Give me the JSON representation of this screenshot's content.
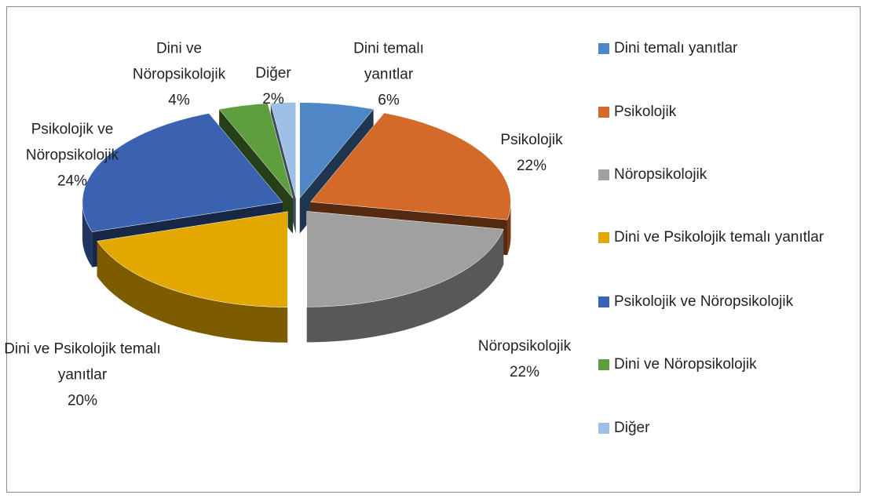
{
  "chart_data": {
    "type": "pie",
    "categories": [
      "Dini temalı yanıtlar",
      "Psikolojik",
      "Nöropsikolojik",
      "Dini ve Psikolojik temalı yanıtlar",
      "Psikolojik ve Nöropsikolojik",
      "Dini ve Nöropsikolojik",
      "Diğer"
    ],
    "values": [
      6,
      22,
      22,
      20,
      24,
      4,
      2
    ],
    "value_labels": [
      "6%",
      "22%",
      "22%",
      "20%",
      "24%",
      "4%",
      "2%"
    ],
    "colors": [
      "#4f86c6",
      "#d46a2a",
      "#a0a0a0",
      "#e3a800",
      "#3b62b0",
      "#5f9e3f",
      "#9dc0e6"
    ]
  }
}
